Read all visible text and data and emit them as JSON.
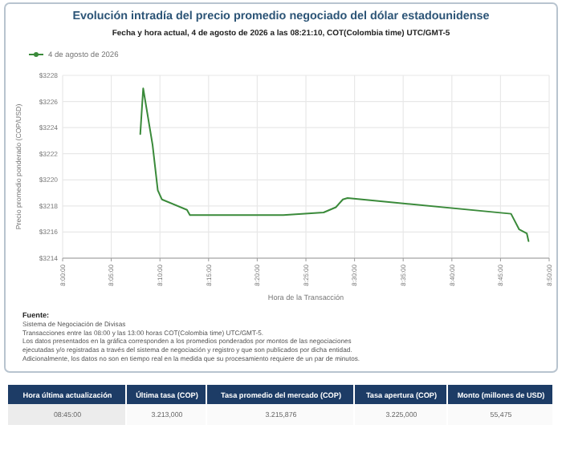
{
  "chart_data": [
    {
      "type": "line",
      "title": "Evolución intradía del precio promedio negociado del dólar estadounidense",
      "subtitle": "Fecha y hora actual, 4 de agosto de 2026 a las 08:21:10, COT(Colombia time) UTC/GMT-5",
      "xlabel": "Hora de la Transacción",
      "ylabel": "Precio promedio ponderado (COP/USD)",
      "legend": "top left",
      "grid": true,
      "marker": "none",
      "line_style": "solid",
      "xlim": [
        8,
        8.8333
      ],
      "ylim": [
        3214,
        3228
      ],
      "xticks": [
        {
          "value": 8,
          "label": "8:00:00"
        },
        {
          "value": 8.0833,
          "label": "8:05:00"
        },
        {
          "value": 8.1667,
          "label": "8:10:00"
        },
        {
          "value": 8.25,
          "label": "8:15:00"
        },
        {
          "value": 8.3333,
          "label": "8:20:00"
        },
        {
          "value": 8.4167,
          "label": "8:25:00"
        },
        {
          "value": 8.5,
          "label": "8:30:00"
        },
        {
          "value": 8.5833,
          "label": "8:35:00"
        },
        {
          "value": 8.6667,
          "label": "8:40:00"
        },
        {
          "value": 8.75,
          "label": "8:45:00"
        },
        {
          "value": 8.8333,
          "label": "8:50:00"
        }
      ],
      "yticks": [
        {
          "value": 3214,
          "label": "$3214"
        },
        {
          "value": 3216,
          "label": "$3216"
        },
        {
          "value": 3218,
          "label": "$3218"
        },
        {
          "value": 3220,
          "label": "$3220"
        },
        {
          "value": 3222,
          "label": "$3222"
        },
        {
          "value": 3224,
          "label": "$3224"
        },
        {
          "value": 3226,
          "label": "$3226"
        },
        {
          "value": 3228,
          "label": "$3228"
        }
      ],
      "series": [
        {
          "name": "4 de agosto de 2026",
          "color": "#3a8a3a",
          "x": [
            8.133,
            8.138,
            8.154,
            8.163,
            8.17,
            8.213,
            8.218,
            8.378,
            8.447,
            8.468,
            8.48,
            8.488,
            8.768,
            8.782,
            8.795,
            8.798
          ],
          "values": [
            3223.5,
            3227,
            3222.7,
            3219.2,
            3218.5,
            3217.7,
            3217.3,
            3217.3,
            3217.5,
            3217.9,
            3218.5,
            3218.6,
            3217.4,
            3216.2,
            3215.9,
            3215.3
          ]
        }
      ],
      "annotations": [
        "Fuente:",
        "Sistema de Negociación de Divisas",
        "Transacciones entre las 08:00 y las 13:00 horas COT(Colombia time) UTC/GMT-5.",
        "Los datos presentados en la gráfica corresponden a los promedios ponderados por montos de las negociaciones",
        "ejecutadas y/o registradas a través del sistema de negociación y registro y que son publicados por dicha entidad.",
        "Adicionalmente, los datos no son en tiempo real en la medida que su procesamiento requiere de un par de minutos."
      ]
    },
    {
      "type": "other",
      "annotations": [
        "Hora última actualización",
        "Última tasa (COP)",
        "Tasa promedio del mercado (COP)",
        "Tasa apertura (COP)",
        "Monto (millones de USD)",
        "08:45:00",
        "3.213,000",
        "3.215,876",
        "3.225,000",
        "55,475"
      ]
    }
  ]
}
